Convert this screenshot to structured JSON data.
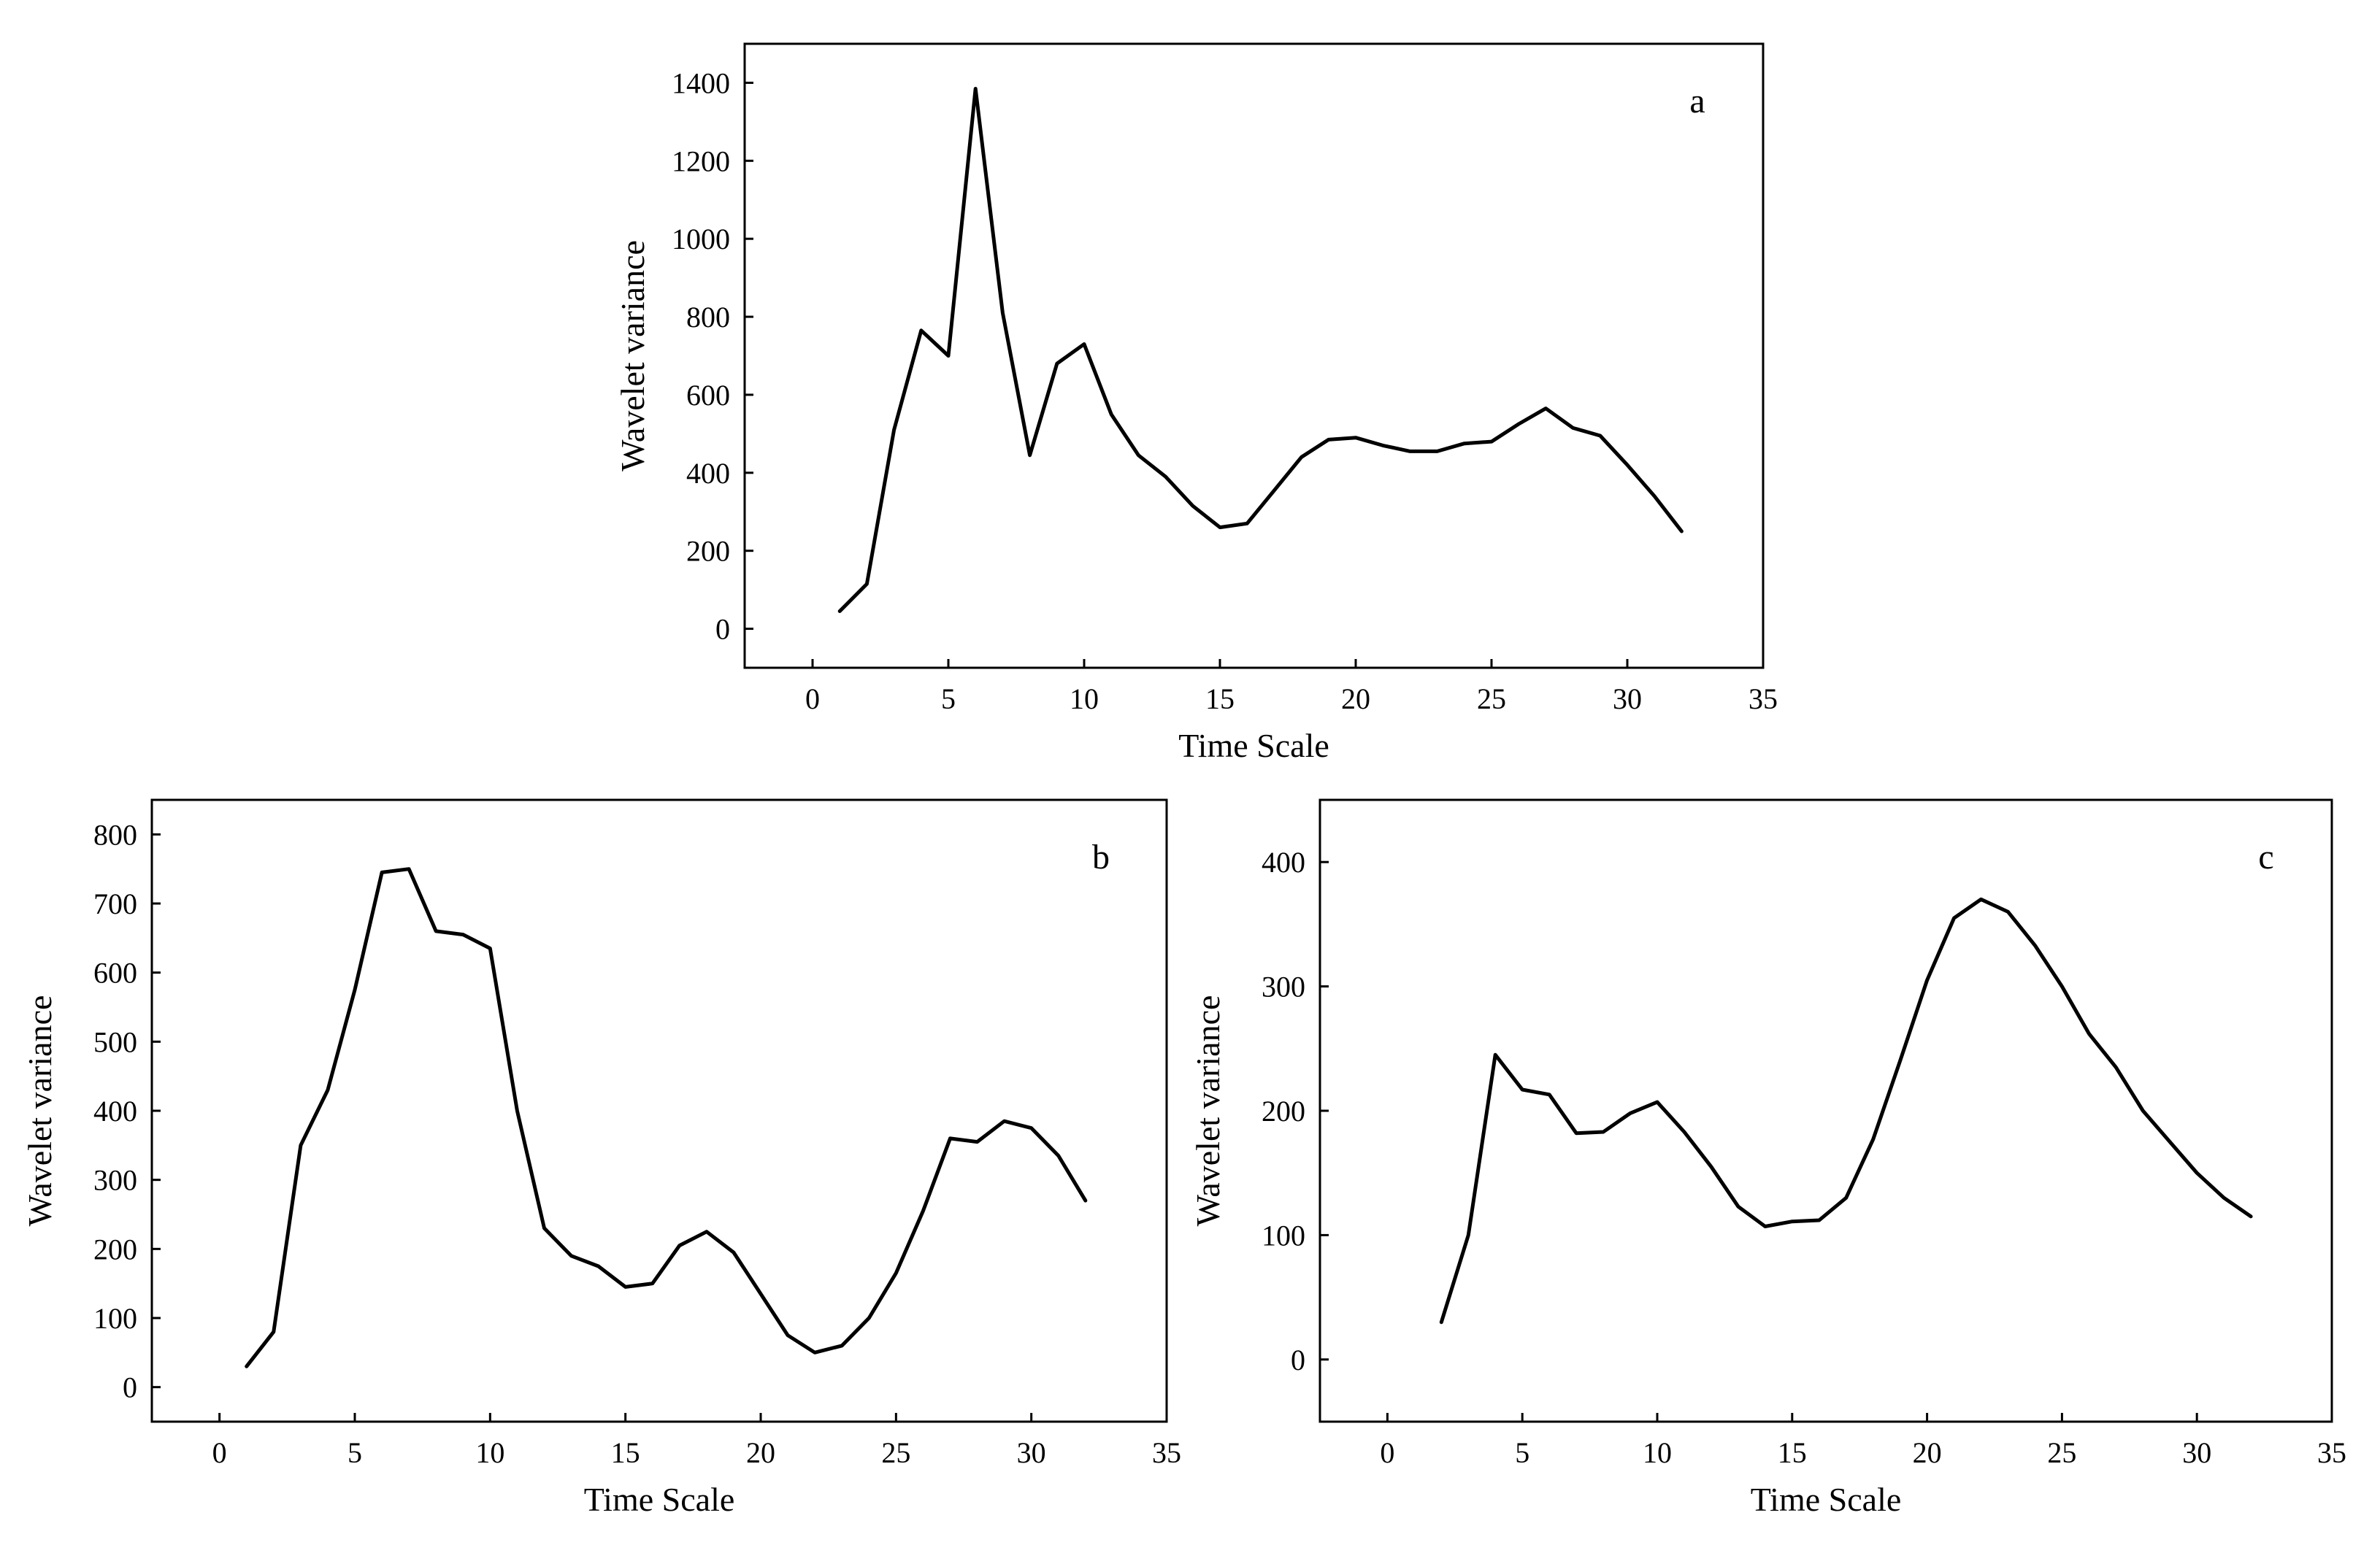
{
  "chart_data": [
    {
      "type": "line",
      "panel": "a",
      "xlabel": "Time Scale",
      "ylabel": "Wavelet variance",
      "xlim": [
        -2.5,
        35
      ],
      "ylim": [
        -100,
        1500
      ],
      "xticks": [
        0,
        5,
        10,
        15,
        20,
        25,
        30,
        35
      ],
      "yticks": [
        0,
        200,
        400,
        600,
        800,
        1000,
        1200,
        1400
      ],
      "x": [
        1,
        2,
        3,
        4,
        5,
        6,
        7,
        8,
        9,
        10,
        11,
        12,
        13,
        14,
        15,
        16,
        17,
        18,
        19,
        20,
        21,
        22,
        23,
        24,
        25,
        26,
        27,
        28,
        29,
        30,
        31,
        32
      ],
      "values": [
        45,
        115,
        510,
        765,
        700,
        1385,
        810,
        445,
        680,
        730,
        550,
        445,
        390,
        315,
        260,
        270,
        355,
        440,
        485,
        490,
        470,
        455,
        455,
        475,
        480,
        525,
        565,
        515,
        495,
        420,
        340,
        250
      ]
    },
    {
      "type": "line",
      "panel": "b",
      "xlabel": "Time Scale",
      "ylabel": "Wavelet  variance",
      "xlim": [
        -2.5,
        35
      ],
      "ylim": [
        -50,
        850
      ],
      "xticks": [
        0,
        5,
        10,
        15,
        20,
        25,
        30,
        35
      ],
      "yticks": [
        0,
        100,
        200,
        300,
        400,
        500,
        600,
        700,
        800
      ],
      "x": [
        1,
        2,
        3,
        4,
        5,
        6,
        7,
        8,
        9,
        10,
        11,
        12,
        13,
        14,
        15,
        16,
        17,
        18,
        19,
        20,
        21,
        22,
        23,
        24,
        25,
        26,
        27,
        28,
        29,
        30,
        31,
        32
      ],
      "values": [
        30,
        80,
        350,
        430,
        575,
        745,
        750,
        660,
        655,
        635,
        400,
        230,
        190,
        175,
        145,
        150,
        205,
        225,
        195,
        135,
        75,
        50,
        60,
        100,
        165,
        255,
        360,
        355,
        385,
        375,
        335,
        270
      ]
    },
    {
      "type": "line",
      "panel": "c",
      "xlabel": "Time Scale",
      "ylabel": "Wavelet  variance",
      "xlim": [
        -2.5,
        35
      ],
      "ylim": [
        -50,
        450
      ],
      "xticks": [
        0,
        5,
        10,
        15,
        20,
        25,
        30,
        35
      ],
      "yticks": [
        0,
        100,
        200,
        300,
        400
      ],
      "x": [
        2,
        3,
        4,
        5,
        6,
        7,
        8,
        9,
        10,
        11,
        12,
        13,
        14,
        15,
        16,
        17,
        18,
        19,
        20,
        21,
        22,
        23,
        24,
        25,
        26,
        27,
        28,
        29,
        30,
        31,
        32
      ],
      "values": [
        30,
        100,
        245,
        217,
        213,
        182,
        183,
        198,
        207,
        183,
        155,
        123,
        107,
        111,
        112,
        130,
        177,
        240,
        305,
        355,
        370,
        360,
        333,
        300,
        262,
        235,
        200,
        175,
        150,
        130,
        115
      ]
    }
  ]
}
